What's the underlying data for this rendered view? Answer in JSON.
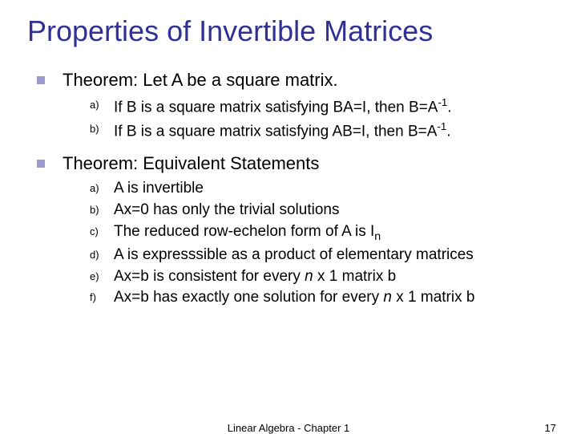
{
  "title": "Properties of Invertible Matrices",
  "theorem1": {
    "heading": "Theorem: Let A be a square matrix.",
    "items": [
      {
        "label": "a)",
        "html": "If B is a square matrix satisfying BA=I, then B=A<span class=\"sup\">-1</span>."
      },
      {
        "label": "b)",
        "html": "If B is a square matrix satisfying AB=I, then B=A<span class=\"sup\">-1</span>."
      }
    ]
  },
  "theorem2": {
    "heading": "Theorem: Equivalent Statements",
    "items": [
      {
        "label": "a)",
        "html": "A is invertible"
      },
      {
        "label": "b)",
        "html": "Ax=0 has only the trivial solutions"
      },
      {
        "label": "c)",
        "html": "The reduced row-echelon form of A is I<span class=\"subn\">n</span>"
      },
      {
        "label": "d)",
        "html": "A is expresssible as a product of elementary matrices"
      },
      {
        "label": "e)",
        "html": "Ax=b is consistent for every <span class=\"ital\">n</span> x 1 matrix b"
      },
      {
        "label": "f)",
        "html": "Ax=b has exactly one solution for every <span class=\"ital\">n</span> x 1 matrix b"
      }
    ]
  },
  "footer": {
    "center": "Linear Algebra - Chapter 1",
    "page": "17"
  },
  "colors": {
    "title": "#313195",
    "bullet": "#9a9acc",
    "text": "#000000",
    "background": "#ffffff"
  },
  "fontsize": {
    "title": 36,
    "theorem": 22,
    "sub_label": 13,
    "sub_text": 19,
    "footer": 13
  }
}
